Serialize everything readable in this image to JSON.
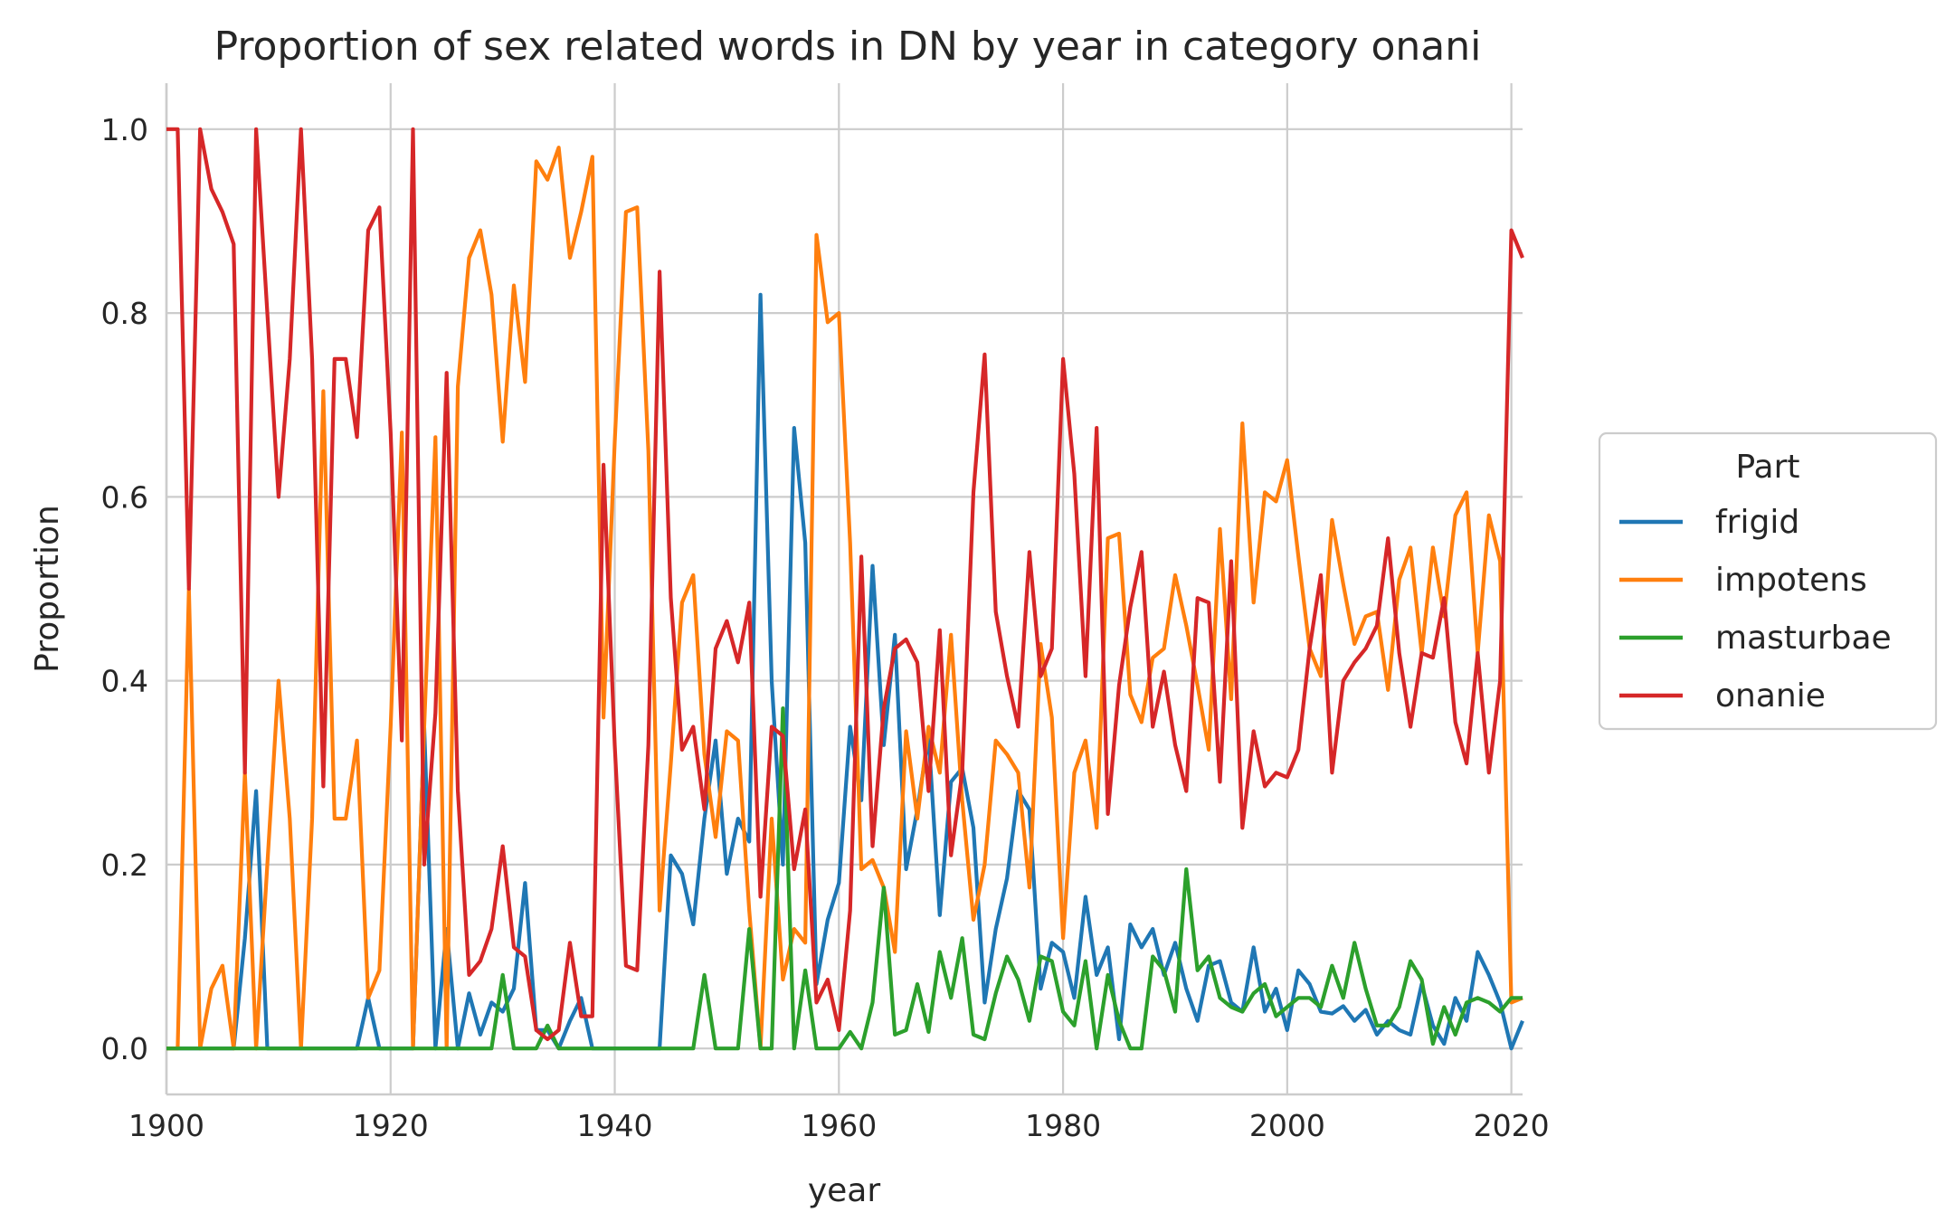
{
  "chart_data": {
    "type": "line",
    "title": "Proportion of sex related words in DN by year in category onani",
    "xlabel": "year",
    "ylabel": "Proportion",
    "xlim": [
      1900,
      2021
    ],
    "ylim": [
      -0.05,
      1.05
    ],
    "xticks": [
      1900,
      1920,
      1940,
      1960,
      1980,
      2000,
      2020
    ],
    "xtick_labels": [
      "1900",
      "1920",
      "1940",
      "1960",
      "1980",
      "2000",
      "2020"
    ],
    "yticks": [
      0,
      0.2,
      0.4,
      0.6,
      0.8,
      1.0
    ],
    "ytick_labels": [
      "0.0",
      "0.2",
      "0.4",
      "0.6",
      "0.8",
      "1.0"
    ],
    "grid": true,
    "legend": {
      "title": "Part",
      "placement": "outside-right"
    },
    "x": [
      1900,
      1901,
      1902,
      1903,
      1904,
      1905,
      1906,
      1907,
      1908,
      1909,
      1910,
      1911,
      1912,
      1913,
      1914,
      1915,
      1916,
      1917,
      1918,
      1919,
      1920,
      1921,
      1922,
      1923,
      1924,
      1925,
      1926,
      1927,
      1928,
      1929,
      1930,
      1931,
      1932,
      1933,
      1934,
      1935,
      1936,
      1937,
      1938,
      1939,
      1940,
      1941,
      1942,
      1943,
      1944,
      1945,
      1946,
      1947,
      1948,
      1949,
      1950,
      1951,
      1952,
      1953,
      1954,
      1955,
      1956,
      1957,
      1958,
      1959,
      1960,
      1961,
      1962,
      1963,
      1964,
      1965,
      1966,
      1967,
      1968,
      1969,
      1970,
      1971,
      1972,
      1973,
      1974,
      1975,
      1976,
      1977,
      1978,
      1979,
      1980,
      1981,
      1982,
      1983,
      1984,
      1985,
      1986,
      1987,
      1988,
      1989,
      1990,
      1991,
      1992,
      1993,
      1994,
      1995,
      1996,
      1997,
      1998,
      1999,
      2000,
      2001,
      2002,
      2003,
      2004,
      2005,
      2006,
      2007,
      2008,
      2009,
      2010,
      2011,
      2012,
      2013,
      2014,
      2015,
      2016,
      2017,
      2018,
      2019,
      2020,
      2021
    ],
    "series": [
      {
        "name": "frigid",
        "color": "#1f77b4",
        "values": [
          0,
          0,
          0,
          0,
          0,
          0,
          0,
          0.12,
          0.28,
          0,
          0,
          0,
          0,
          0,
          0,
          0,
          0,
          0,
          0.055,
          0,
          0,
          0,
          0,
          0.35,
          0,
          0.13,
          0,
          0.06,
          0.015,
          0.05,
          0.04,
          0.065,
          0.18,
          0.02,
          0.02,
          0,
          0.03,
          0.055,
          0,
          0,
          0,
          0,
          0,
          0,
          0,
          0.21,
          0.19,
          0.135,
          0.25,
          0.335,
          0.19,
          0.25,
          0.225,
          0.82,
          0.4,
          0.2,
          0.675,
          0.55,
          0.07,
          0.14,
          0.18,
          0.35,
          0.27,
          0.525,
          0.33,
          0.45,
          0.195,
          0.26,
          0.34,
          0.145,
          0.29,
          0.305,
          0.24,
          0.05,
          0.13,
          0.185,
          0.28,
          0.26,
          0.065,
          0.115,
          0.105,
          0.055,
          0.165,
          0.08,
          0.11,
          0.01,
          0.135,
          0.11,
          0.13,
          0.08,
          0.115,
          0.065,
          0.03,
          0.09,
          0.095,
          0.05,
          0.04,
          0.11,
          0.04,
          0.065,
          0.02,
          0.085,
          0.07,
          0.04,
          0.038,
          0.046,
          0.03,
          0.042,
          0.015,
          0.03,
          0.02,
          0.015,
          0.07,
          0.025,
          0.005,
          0.055,
          0.03,
          0.105,
          0.08,
          0.05,
          0,
          0.03
        ]
      },
      {
        "name": "impotens",
        "color": "#ff7f0e",
        "values": [
          0,
          0,
          0.5,
          0,
          0.065,
          0.09,
          0,
          0.3,
          0,
          0.2,
          0.4,
          0.25,
          0,
          0.25,
          0.715,
          0.25,
          0.25,
          0.335,
          0.055,
          0.085,
          0.35,
          0.67,
          0,
          0.35,
          0.665,
          0,
          0.72,
          0.86,
          0.89,
          0.82,
          0.66,
          0.83,
          0.725,
          0.965,
          0.945,
          0.98,
          0.86,
          0.91,
          0.97,
          0.36,
          0.66,
          0.91,
          0.915,
          0.65,
          0.15,
          0.31,
          0.485,
          0.515,
          0.32,
          0.23,
          0.345,
          0.335,
          0.15,
          0,
          0.25,
          0.075,
          0.13,
          0.115,
          0.885,
          0.79,
          0.8,
          0.55,
          0.195,
          0.205,
          0.175,
          0.105,
          0.345,
          0.25,
          0.35,
          0.3,
          0.45,
          0.27,
          0.14,
          0.2,
          0.335,
          0.32,
          0.3,
          0.175,
          0.44,
          0.36,
          0.12,
          0.3,
          0.335,
          0.24,
          0.555,
          0.56,
          0.385,
          0.355,
          0.425,
          0.435,
          0.515,
          0.46,
          0.395,
          0.325,
          0.565,
          0.38,
          0.68,
          0.485,
          0.605,
          0.595,
          0.64,
          0.535,
          0.435,
          0.405,
          0.575,
          0.505,
          0.44,
          0.47,
          0.475,
          0.39,
          0.51,
          0.545,
          0.43,
          0.545,
          0.47,
          0.58,
          0.605,
          0.43,
          0.58,
          0.53,
          0.05,
          0.055
        ]
      },
      {
        "name": "masturbae",
        "color": "#2ca02c",
        "values": [
          0,
          0,
          0,
          0,
          0,
          0,
          0,
          0,
          0,
          0,
          0,
          0,
          0,
          0,
          0,
          0,
          0,
          0,
          0,
          0,
          0,
          0,
          0,
          0,
          0,
          0,
          0,
          0,
          0,
          0,
          0.08,
          0,
          0,
          0,
          0.025,
          0,
          0,
          0,
          0,
          0,
          0,
          0,
          0,
          0,
          0,
          0,
          0,
          0,
          0.08,
          0,
          0,
          0,
          0.13,
          0,
          0,
          0.37,
          0,
          0.085,
          0,
          0,
          0,
          0.018,
          0,
          0.05,
          0.175,
          0.015,
          0.02,
          0.07,
          0.018,
          0.105,
          0.055,
          0.12,
          0.015,
          0.01,
          0.06,
          0.1,
          0.075,
          0.03,
          0.1,
          0.095,
          0.04,
          0.025,
          0.095,
          0,
          0.08,
          0.03,
          0,
          0,
          0.1,
          0.085,
          0.04,
          0.195,
          0.085,
          0.1,
          0.055,
          0.045,
          0.04,
          0.06,
          0.07,
          0.035,
          0.045,
          0.055,
          0.055,
          0.045,
          0.09,
          0.055,
          0.115,
          0.065,
          0.025,
          0.025,
          0.045,
          0.095,
          0.075,
          0.005,
          0.045,
          0.015,
          0.05,
          0.055,
          0.05,
          0.04,
          0.055,
          0.055
        ]
      },
      {
        "name": "onanie",
        "color": "#d62728",
        "values": [
          1.0,
          1.0,
          0.5,
          1.0,
          0.935,
          0.91,
          0.875,
          0.3,
          1.0,
          0.8,
          0.6,
          0.75,
          1.0,
          0.75,
          0.285,
          0.75,
          0.75,
          0.665,
          0.89,
          0.915,
          0.67,
          0.335,
          1.0,
          0.2,
          0.365,
          0.735,
          0.28,
          0.08,
          0.095,
          0.13,
          0.22,
          0.11,
          0.1,
          0.02,
          0.01,
          0.02,
          0.115,
          0.035,
          0.035,
          0.635,
          0.33,
          0.09,
          0.085,
          0.33,
          0.845,
          0.49,
          0.325,
          0.35,
          0.26,
          0.435,
          0.465,
          0.42,
          0.485,
          0.165,
          0.35,
          0.34,
          0.195,
          0.26,
          0.05,
          0.075,
          0.02,
          0.15,
          0.535,
          0.22,
          0.37,
          0.435,
          0.445,
          0.42,
          0.28,
          0.455,
          0.21,
          0.3,
          0.605,
          0.755,
          0.475,
          0.405,
          0.35,
          0.54,
          0.405,
          0.435,
          0.75,
          0.625,
          0.405,
          0.675,
          0.255,
          0.395,
          0.48,
          0.54,
          0.35,
          0.41,
          0.33,
          0.28,
          0.49,
          0.485,
          0.29,
          0.53,
          0.24,
          0.345,
          0.285,
          0.3,
          0.295,
          0.325,
          0.435,
          0.515,
          0.3,
          0.4,
          0.42,
          0.435,
          0.46,
          0.555,
          0.43,
          0.35,
          0.43,
          0.425,
          0.49,
          0.355,
          0.31,
          0.43,
          0.3,
          0.4,
          0.89,
          0.86
        ]
      }
    ]
  }
}
